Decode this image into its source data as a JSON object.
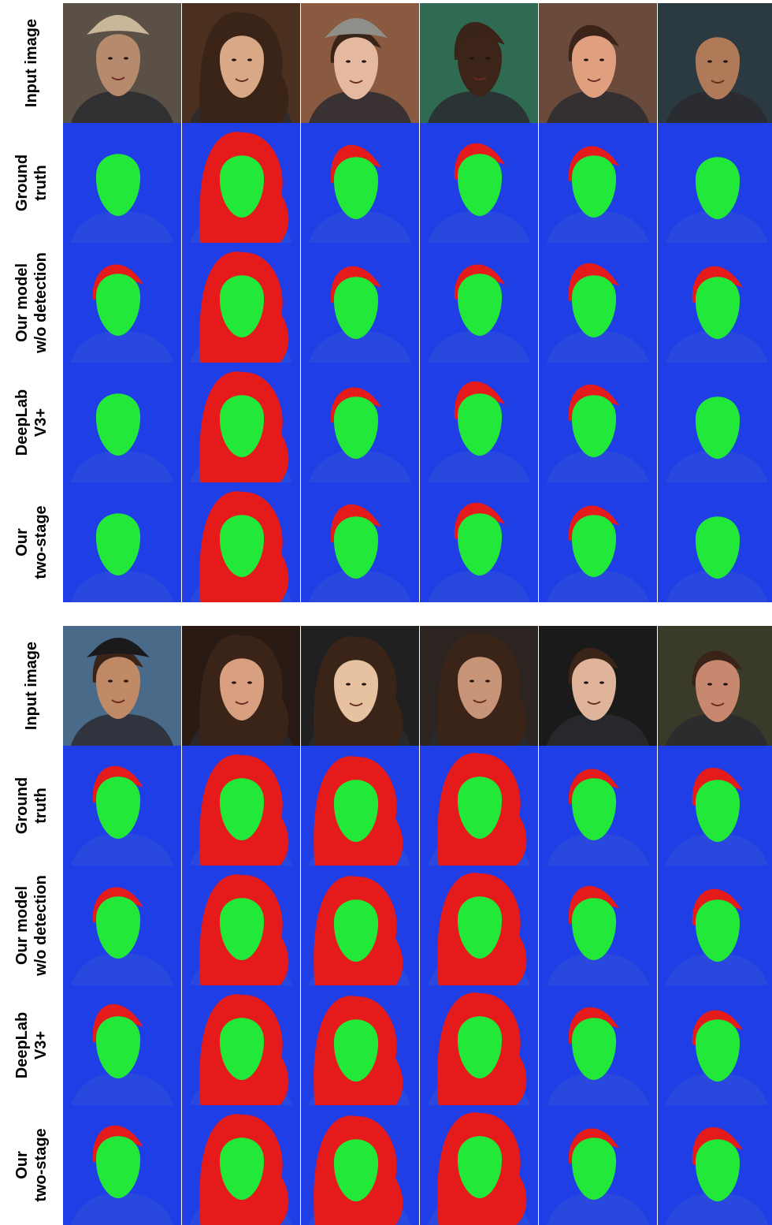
{
  "figure": {
    "blocks": [
      {
        "rows": [
          {
            "label_lines": [
              "Input image"
            ],
            "kind": "photo"
          },
          {
            "label_lines": [
              "Ground",
              "truth"
            ],
            "kind": "seg"
          },
          {
            "label_lines": [
              "Our model",
              "w/o detection"
            ],
            "kind": "seg"
          },
          {
            "label_lines": [
              "DeepLab",
              "V3+"
            ],
            "kind": "seg"
          },
          {
            "label_lines": [
              "Our",
              "two-stage"
            ],
            "kind": "seg"
          }
        ],
        "columns": [
          {
            "skin": "#b68a6c",
            "bg": "#5b5046",
            "hair": "none",
            "hat": "#c9b79a"
          },
          {
            "skin": "#d9a987",
            "bg": "#4b3020",
            "hair": "long",
            "hat": ""
          },
          {
            "skin": "#e4b9a0",
            "bg": "#8a5a40",
            "hair": "short",
            "hat": "#8f8f8a"
          },
          {
            "skin": "#3d2418",
            "bg": "#2f6a52",
            "hair": "short",
            "hat": ""
          },
          {
            "skin": "#e0a080",
            "bg": "#6a4a3a",
            "hair": "short",
            "hat": ""
          },
          {
            "skin": "#b07a58",
            "bg": "#2a3a40",
            "hair": "none",
            "hat": ""
          }
        ]
      },
      {
        "rows": [
          {
            "label_lines": [
              "Input image"
            ],
            "kind": "photo"
          },
          {
            "label_lines": [
              "Ground",
              "truth"
            ],
            "kind": "seg"
          },
          {
            "label_lines": [
              "Our model",
              "w/o detection"
            ],
            "kind": "seg"
          },
          {
            "label_lines": [
              "DeepLab",
              "V3+"
            ],
            "kind": "seg"
          },
          {
            "label_lines": [
              "Our",
              "two-stage"
            ],
            "kind": "seg"
          }
        ],
        "columns": [
          {
            "skin": "#c08a66",
            "bg": "#4a6a8a",
            "hair": "short",
            "hat": "#1a1a1a"
          },
          {
            "skin": "#d8a080",
            "bg": "#2a1a14",
            "hair": "long",
            "hat": ""
          },
          {
            "skin": "#e6c2a0",
            "bg": "#202020",
            "hair": "long",
            "hat": ""
          },
          {
            "skin": "#c89478",
            "bg": "#2c2420",
            "hair": "long",
            "hat": ""
          },
          {
            "skin": "#e0b49a",
            "bg": "#1a1a1a",
            "hair": "short",
            "hat": ""
          },
          {
            "skin": "#c88870",
            "bg": "#3a3a2a",
            "hair": "short",
            "hat": ""
          }
        ]
      }
    ],
    "colors": {
      "background_class": "#1f3ee6",
      "face_class": "#22e83a",
      "hair_class": "#e51a1a"
    }
  }
}
